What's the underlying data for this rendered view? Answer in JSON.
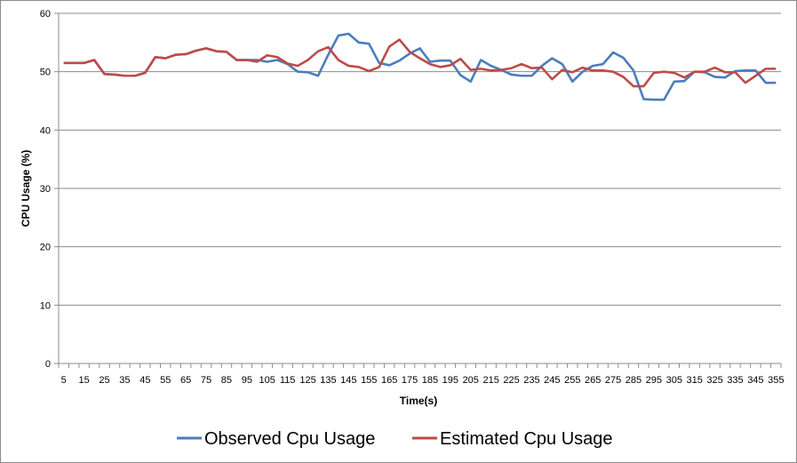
{
  "chart_data": {
    "type": "line",
    "title": "",
    "xlabel": "Time(s)",
    "ylabel": "CPU Usage (%)",
    "ylim": [
      0,
      60
    ],
    "yticks": [
      0,
      10,
      20,
      30,
      40,
      50,
      60
    ],
    "grid": true,
    "legend_position": "bottom",
    "x": [
      5,
      10,
      15,
      20,
      25,
      30,
      35,
      40,
      45,
      50,
      55,
      60,
      65,
      70,
      75,
      80,
      85,
      90,
      95,
      100,
      105,
      110,
      115,
      120,
      125,
      130,
      135,
      140,
      145,
      150,
      155,
      160,
      165,
      170,
      175,
      180,
      185,
      190,
      195,
      200,
      205,
      210,
      215,
      220,
      225,
      230,
      235,
      240,
      245,
      250,
      255,
      260,
      265,
      270,
      275,
      280,
      285,
      290,
      295,
      300,
      305,
      310,
      315,
      320,
      325,
      330,
      335,
      340,
      345,
      350,
      355
    ],
    "x_tick_labels": [
      "5",
      "15",
      "25",
      "35",
      "45",
      "55",
      "65",
      "75",
      "85",
      "95",
      "105",
      "115",
      "125",
      "135",
      "145",
      "155",
      "165",
      "175",
      "185",
      "195",
      "205",
      "215",
      "225",
      "235",
      "245",
      "255",
      "265",
      "275",
      "285",
      "295",
      "305",
      "315",
      "325",
      "335",
      "345",
      "355"
    ],
    "series": [
      {
        "name": "Observed Cpu Usage",
        "color": "#4a7ebb",
        "values": [
          51.5,
          51.5,
          51.5,
          52.0,
          49.6,
          49.5,
          49.3,
          49.3,
          49.8,
          52.5,
          52.3,
          52.9,
          53.0,
          53.6,
          54.0,
          53.5,
          53.4,
          52.0,
          52.0,
          52.0,
          51.7,
          52.0,
          51.3,
          50.0,
          49.9,
          49.3,
          52.9,
          56.2,
          56.5,
          55.0,
          54.8,
          51.5,
          51.1,
          51.9,
          53.1,
          54.0,
          51.7,
          51.9,
          51.9,
          49.4,
          48.3,
          52.0,
          51.0,
          50.3,
          49.5,
          49.3,
          49.3,
          51.0,
          52.3,
          51.3,
          48.3,
          50.0,
          51.0,
          51.3,
          53.3,
          52.4,
          50.2,
          45.3,
          45.2,
          45.2,
          48.3,
          48.4,
          50.0,
          49.9,
          49.1,
          49.0,
          50.1,
          50.2,
          50.2,
          48.1,
          48.1
        ]
      },
      {
        "name": "Estimated Cpu Usage",
        "color": "#be4b48",
        "values": [
          51.5,
          51.5,
          51.5,
          52.0,
          49.6,
          49.5,
          49.3,
          49.3,
          49.8,
          52.5,
          52.3,
          52.9,
          53.0,
          53.6,
          54.0,
          53.5,
          53.4,
          52.0,
          52.0,
          51.7,
          52.8,
          52.5,
          51.4,
          51.0,
          52.0,
          53.5,
          54.2,
          52.0,
          51.0,
          50.8,
          50.1,
          50.8,
          54.3,
          55.5,
          53.4,
          52.3,
          51.3,
          50.8,
          51.1,
          52.2,
          50.3,
          50.5,
          50.2,
          50.3,
          50.6,
          51.3,
          50.6,
          50.7,
          48.7,
          50.3,
          49.9,
          50.7,
          50.2,
          50.2,
          50.0,
          49.1,
          47.5,
          47.5,
          49.8,
          50.0,
          49.8,
          49.0,
          50.0,
          50.0,
          50.7,
          49.9,
          49.9,
          48.1,
          49.3,
          50.5,
          50.5
        ]
      }
    ]
  }
}
